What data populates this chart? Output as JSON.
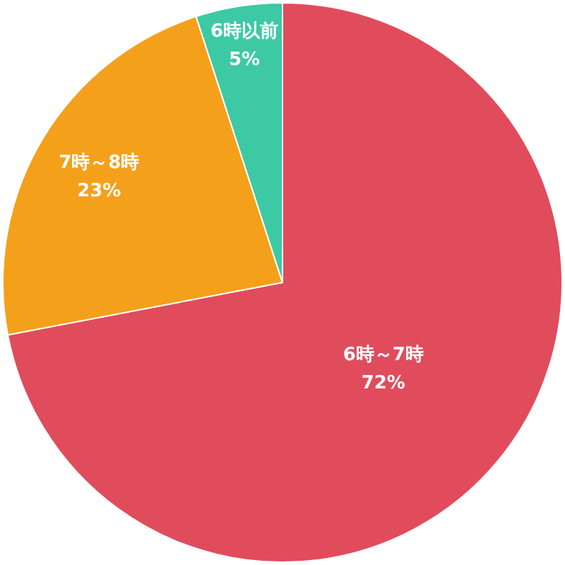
{
  "chart_data": {
    "type": "pie",
    "categories": [
      "6時～7時",
      "7時～8時",
      "6時以前"
    ],
    "values": [
      72,
      23,
      5
    ],
    "colors": [
      "#e04c5c",
      "#f5a01a",
      "#3cc9a4"
    ],
    "value_labels": [
      "72%",
      "23%",
      "5%"
    ]
  }
}
